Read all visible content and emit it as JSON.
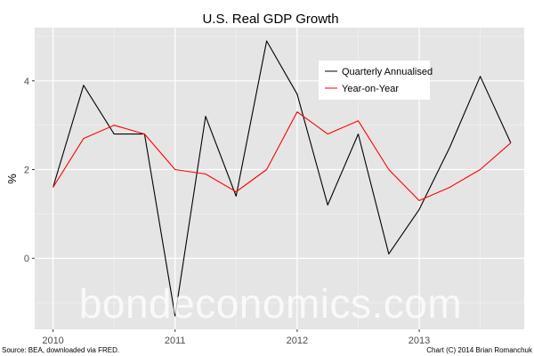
{
  "chart_data": {
    "type": "line",
    "title": "U.S. Real GDP Growth",
    "xlabel": "",
    "ylabel": "%",
    "xlim": [
      2010.0,
      2013.75
    ],
    "ylim": [
      -1.6,
      5.2
    ],
    "x_ticks": [
      2010,
      2011,
      2012,
      2013
    ],
    "x_tick_labels": [
      "2010",
      "2011",
      "2012",
      "2013"
    ],
    "y_ticks": [
      0,
      2,
      4
    ],
    "y_tick_labels": [
      "0",
      "2",
      "4"
    ],
    "grid": true,
    "legend_position": "top-right",
    "x": [
      2010.0,
      2010.25,
      2010.5,
      2010.75,
      2011.0,
      2011.25,
      2011.5,
      2011.75,
      2012.0,
      2012.25,
      2012.5,
      2012.75,
      2013.0,
      2013.25,
      2013.5,
      2013.75
    ],
    "series": [
      {
        "name": "Quarterly Annualised",
        "color": "#000000",
        "values": [
          1.6,
          3.9,
          2.8,
          2.8,
          -1.3,
          3.2,
          1.4,
          4.9,
          3.7,
          1.2,
          2.8,
          0.1,
          1.1,
          2.5,
          4.1,
          2.6
        ]
      },
      {
        "name": "Year-on-Year",
        "color": "#ff0000",
        "values": [
          1.6,
          2.7,
          3.0,
          2.8,
          2.0,
          1.9,
          1.5,
          2.0,
          3.3,
          2.8,
          3.1,
          2.0,
          1.3,
          1.6,
          2.0,
          2.6
        ]
      }
    ]
  },
  "footer": {
    "source": "Source: BEA, downloaded via FRED.",
    "credit": "Chart (C) 2014 Brian Romanchuk"
  },
  "watermark": "bondeconomics.com",
  "colors": {
    "panel_background": "#e5e5e5",
    "grid": "#ffffff"
  }
}
